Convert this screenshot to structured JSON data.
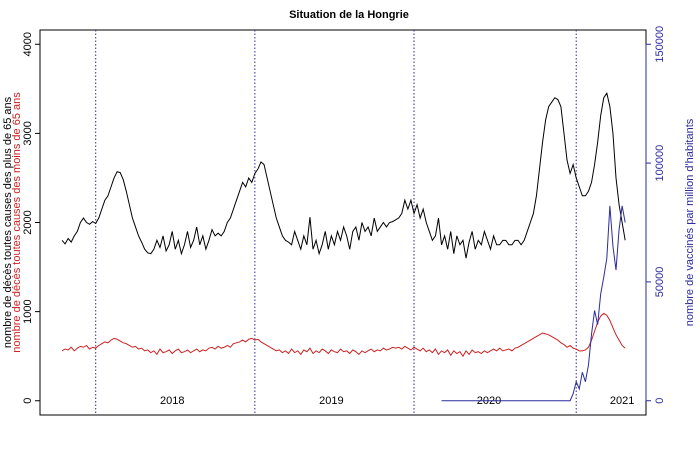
{
  "chart_data": {
    "type": "line",
    "title": "Situation de la Hongrie",
    "x": [
      0,
      1,
      2,
      3,
      4,
      5,
      6,
      7,
      8,
      9,
      10,
      11,
      12,
      13,
      14,
      15,
      16,
      17,
      18,
      19,
      20,
      21,
      22,
      23,
      24,
      25,
      26,
      27,
      28,
      29,
      30,
      31,
      32,
      33,
      34,
      35,
      36,
      37,
      38,
      39,
      40,
      41,
      42,
      43,
      44,
      45,
      46,
      47,
      48,
      49,
      50,
      51,
      52,
      53,
      54,
      55,
      56,
      57,
      58,
      59,
      60,
      61,
      62,
      63,
      64,
      65,
      66,
      67,
      68,
      69,
      70,
      71,
      72,
      73,
      74,
      75,
      76,
      77,
      78,
      79,
      80,
      81,
      82,
      83,
      84,
      85,
      86,
      87,
      88,
      89,
      90,
      91,
      92,
      93,
      94,
      95,
      96,
      97,
      98,
      99,
      100,
      101,
      102,
      103,
      104,
      105,
      106,
      107,
      108,
      109,
      110,
      111,
      112,
      113,
      114,
      115,
      116,
      117,
      118,
      119,
      120,
      121,
      122,
      123,
      124,
      125,
      126,
      127,
      128,
      129,
      130,
      131,
      132,
      133,
      134,
      135,
      136,
      137,
      138,
      139,
      140,
      141,
      142,
      143,
      144,
      145,
      146,
      147,
      148,
      149,
      150,
      151,
      152,
      153,
      154,
      155,
      156,
      157,
      158,
      159,
      160,
      161,
      162,
      163,
      164,
      165,
      166,
      167,
      168,
      169,
      170,
      171,
      172,
      173,
      174,
      175,
      176,
      177,
      178,
      179,
      180,
      181,
      182,
      183,
      184
    ],
    "series": [
      {
        "name": "nombre de décès toutes causes des plus de 65 ans",
        "color": "#000000",
        "values": [
          1800,
          1760,
          1820,
          1780,
          1850,
          1900,
          2000,
          2050,
          2000,
          1980,
          2010,
          1990,
          2050,
          2150,
          2250,
          2300,
          2400,
          2500,
          2570,
          2560,
          2480,
          2350,
          2200,
          2050,
          1950,
          1850,
          1780,
          1700,
          1660,
          1650,
          1700,
          1800,
          1720,
          1850,
          1680,
          1750,
          1900,
          1700,
          1800,
          1650,
          1750,
          1900,
          1720,
          1800,
          1950,
          1750,
          1850,
          1700,
          1800,
          1920,
          1850,
          1880,
          1850,
          1900,
          2000,
          2050,
          2150,
          2250,
          2350,
          2450,
          2400,
          2500,
          2450,
          2550,
          2600,
          2680,
          2650,
          2500,
          2350,
          2200,
          2050,
          1950,
          1850,
          1800,
          1780,
          1750,
          1900,
          1800,
          1700,
          1850,
          1750,
          2060,
          1700,
          1800,
          1650,
          1750,
          1900,
          1700,
          1850,
          1750,
          1900,
          1800,
          1950,
          1850,
          1700,
          1900,
          1950,
          1800,
          2000,
          1900,
          1950,
          1850,
          2050,
          1900,
          1950,
          2000,
          1950,
          2000,
          2010,
          2030,
          2050,
          2100,
          2250,
          2150,
          2250,
          2100,
          2200,
          2050,
          2150,
          2000,
          1900,
          1800,
          1850,
          2050,
          1750,
          1850,
          1700,
          1900,
          1650,
          1850,
          1750,
          1800,
          1600,
          1780,
          1900,
          1700,
          1800,
          1750,
          1900,
          1800,
          1700,
          1850,
          1750,
          1750,
          1800,
          1800,
          1750,
          1750,
          1800,
          1800,
          1750,
          1800,
          1900,
          2000,
          2100,
          2300,
          2600,
          2900,
          3150,
          3300,
          3350,
          3400,
          3380,
          3300,
          3000,
          2700,
          2550,
          2650,
          2500,
          2400,
          2300,
          2300,
          2350,
          2450,
          2650,
          2900,
          3200,
          3400,
          3450,
          3300,
          3000,
          2500,
          2200,
          2000,
          1800
        ]
      },
      {
        "name": "nombre de décès toutes causes des moins de 65 ans",
        "color": "#cc2222",
        "values": [
          560,
          580,
          570,
          600,
          560,
          590,
          610,
          600,
          620,
          580,
          600,
          590,
          620,
          640,
          660,
          650,
          680,
          700,
          690,
          670,
          650,
          640,
          620,
          600,
          610,
          580,
          590,
          560,
          570,
          540,
          560,
          520,
          580,
          540,
          550,
          570,
          530,
          560,
          580,
          540,
          550,
          570,
          540,
          560,
          580,
          550,
          570,
          560,
          590,
          600,
          580,
          610,
          590,
          600,
          620,
          600,
          640,
          650,
          660,
          680,
          660,
          690,
          700,
          680,
          690,
          660,
          640,
          620,
          600,
          580,
          560,
          570,
          540,
          560,
          530,
          580,
          540,
          560,
          520,
          570,
          550,
          590,
          530,
          560,
          540,
          580,
          560,
          530,
          570,
          550,
          540,
          580,
          550,
          560,
          530,
          570,
          550,
          520,
          560,
          540,
          560,
          580,
          550,
          570,
          560,
          590,
          570,
          580,
          600,
          590,
          600,
          580,
          610,
          590,
          570,
          600,
          580,
          560,
          590,
          550,
          570,
          540,
          580,
          520,
          560,
          540,
          570,
          510,
          560,
          530,
          550,
          500,
          560,
          520,
          570,
          540,
          550,
          530,
          560,
          540,
          560,
          580,
          560,
          590,
          560,
          570,
          580,
          560,
          590,
          600,
          620,
          640,
          660,
          680,
          700,
          720,
          740,
          760,
          750,
          740,
          720,
          700,
          680,
          650,
          630,
          600,
          620,
          590,
          580,
          560,
          560,
          570,
          600,
          680,
          780,
          880,
          950,
          980,
          960,
          900,
          820,
          740,
          680,
          620,
          590
        ]
      },
      {
        "name": "nombre de vaccinés par million d'habitants",
        "color": "#2b2b9e",
        "axis": "y2",
        "x": [
          124,
          125,
          126,
          127,
          128,
          129,
          130,
          131,
          132,
          133,
          134,
          135,
          136,
          137,
          138,
          139,
          140,
          141,
          142,
          143,
          144,
          145,
          146,
          147,
          148,
          149,
          150,
          151,
          152,
          153,
          154,
          155,
          156,
          157,
          158,
          159,
          160,
          161,
          162,
          163,
          164,
          165,
          166,
          167,
          168,
          169,
          170,
          171,
          172,
          173,
          174,
          175,
          176,
          177,
          178,
          179,
          180,
          181,
          182,
          183,
          184
        ],
        "values": [
          0,
          0,
          0,
          0,
          0,
          0,
          0,
          0,
          0,
          0,
          0,
          0,
          0,
          0,
          0,
          0,
          0,
          0,
          0,
          0,
          0,
          0,
          0,
          0,
          0,
          0,
          0,
          0,
          0,
          0,
          0,
          0,
          0,
          0,
          0,
          0,
          0,
          0,
          0,
          0,
          0,
          0,
          0,
          3000,
          8000,
          5000,
          12000,
          8000,
          15000,
          28000,
          38000,
          32000,
          45000,
          52000,
          60000,
          82000,
          65000,
          55000,
          72000,
          82000,
          75000
        ]
      }
    ],
    "xlim": [
      -7.2,
      190.8
    ],
    "xticks": [
      {
        "value": 36,
        "label": "2018"
      },
      {
        "value": 88,
        "label": "2019"
      },
      {
        "value": 139.5,
        "label": "2020"
      },
      {
        "value": 183,
        "label": "2021"
      }
    ],
    "vlines": [
      11,
      63,
      115,
      168
    ],
    "ylim": [
      -160,
      4160
    ],
    "yticks": [
      0,
      1000,
      2000,
      3000,
      4000
    ],
    "y2lim": [
      -6000,
      156000
    ],
    "y2ticks": [
      0,
      50000,
      100000,
      150000
    ]
  }
}
